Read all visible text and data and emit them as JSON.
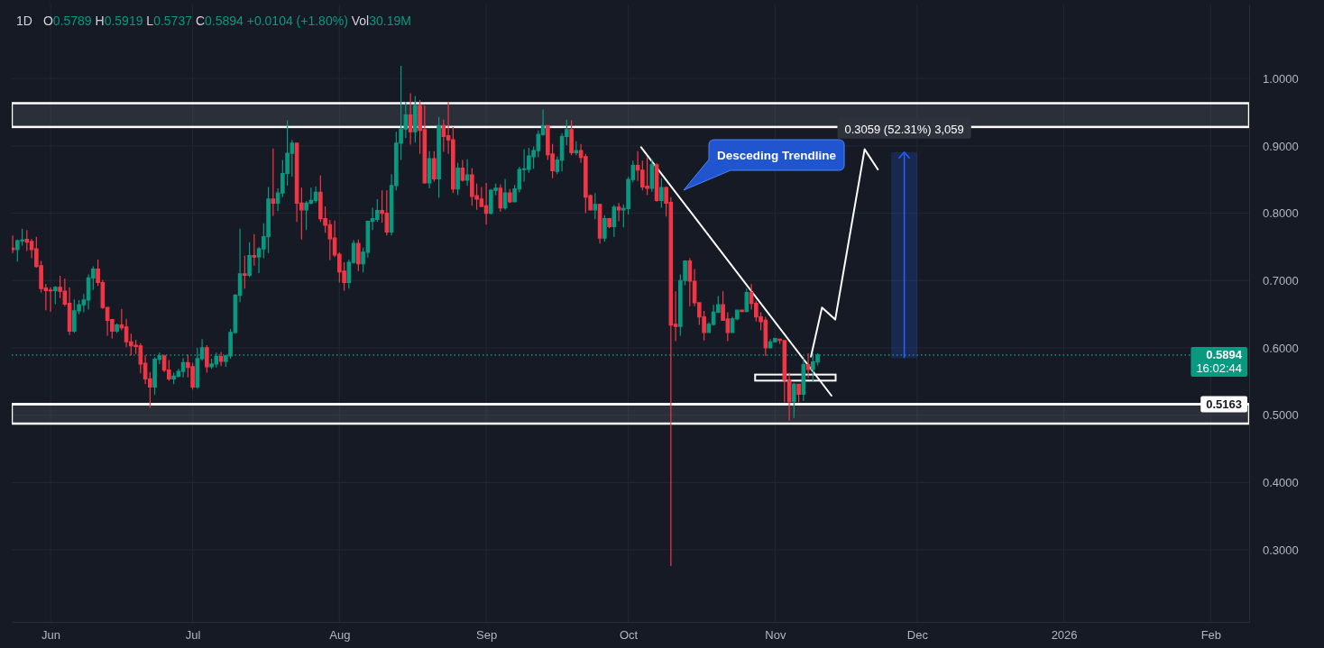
{
  "chart_data": {
    "type": "candlestick",
    "title": "1D",
    "subtitle": "O0.5789 H0.5919 L0.5737 C0.5894 +0.0104 (+1.80%) Vol30.19M",
    "x": [
      "2025-05-24",
      "2025-05-25",
      "2025-05-26",
      "2025-05-27",
      "2025-05-28",
      "2025-05-29",
      "2025-05-30",
      "2025-05-31",
      "2025-06-01",
      "2025-06-02",
      "2025-06-03",
      "2025-06-04",
      "2025-06-05",
      "2025-06-06",
      "2025-06-07",
      "2025-06-08",
      "2025-06-09",
      "2025-06-10",
      "2025-06-11",
      "2025-06-12",
      "2025-06-13",
      "2025-06-14",
      "2025-06-15",
      "2025-06-16",
      "2025-06-17",
      "2025-06-18",
      "2025-06-19",
      "2025-06-20",
      "2025-06-21",
      "2025-06-22",
      "2025-06-23",
      "2025-06-24",
      "2025-06-25",
      "2025-06-26",
      "2025-06-27",
      "2025-06-28",
      "2025-06-29",
      "2025-06-30",
      "2025-07-01",
      "2025-07-02",
      "2025-07-03",
      "2025-07-04",
      "2025-07-05",
      "2025-07-06",
      "2025-07-07",
      "2025-07-08",
      "2025-07-09",
      "2025-07-10",
      "2025-07-11",
      "2025-07-12",
      "2025-07-13",
      "2025-07-14",
      "2025-07-15",
      "2025-07-16",
      "2025-07-17",
      "2025-07-18",
      "2025-07-19",
      "2025-07-20",
      "2025-07-21",
      "2025-07-22",
      "2025-07-23",
      "2025-07-24",
      "2025-07-25",
      "2025-07-26",
      "2025-07-27",
      "2025-07-28",
      "2025-07-29",
      "2025-07-30",
      "2025-07-31",
      "2025-08-01",
      "2025-08-02",
      "2025-08-03",
      "2025-08-04",
      "2025-08-05",
      "2025-08-06",
      "2025-08-07",
      "2025-08-08",
      "2025-08-09",
      "2025-08-10",
      "2025-08-11",
      "2025-08-12",
      "2025-08-13",
      "2025-08-14",
      "2025-08-15",
      "2025-08-16",
      "2025-08-17",
      "2025-08-18",
      "2025-08-19",
      "2025-08-20",
      "2025-08-21",
      "2025-08-22",
      "2025-08-23",
      "2025-08-24",
      "2025-08-25",
      "2025-08-26",
      "2025-08-27",
      "2025-08-28",
      "2025-08-29",
      "2025-08-30",
      "2025-08-31",
      "2025-09-01",
      "2025-09-02",
      "2025-09-03",
      "2025-09-04",
      "2025-09-05",
      "2025-09-06",
      "2025-09-07",
      "2025-09-08",
      "2025-09-09",
      "2025-09-10",
      "2025-09-11",
      "2025-09-12",
      "2025-09-13",
      "2025-09-14",
      "2025-09-15",
      "2025-09-16",
      "2025-09-17",
      "2025-09-18",
      "2025-09-19",
      "2025-09-20",
      "2025-09-21",
      "2025-09-22",
      "2025-09-23",
      "2025-09-24",
      "2025-09-25",
      "2025-09-26",
      "2025-09-27",
      "2025-09-28",
      "2025-09-29",
      "2025-09-30",
      "2025-10-01",
      "2025-10-02",
      "2025-10-03",
      "2025-10-04",
      "2025-10-05",
      "2025-10-06",
      "2025-10-07",
      "2025-10-08",
      "2025-10-09",
      "2025-10-10",
      "2025-10-11",
      "2025-10-12",
      "2025-10-13",
      "2025-10-14",
      "2025-10-15",
      "2025-10-16",
      "2025-10-17",
      "2025-10-18",
      "2025-10-19",
      "2025-10-20",
      "2025-10-21",
      "2025-10-22",
      "2025-10-23",
      "2025-10-24",
      "2025-10-25",
      "2025-10-26",
      "2025-10-27",
      "2025-10-28",
      "2025-10-29",
      "2025-10-30",
      "2025-10-31",
      "2025-11-01",
      "2025-11-02",
      "2025-11-03",
      "2025-11-04",
      "2025-11-05",
      "2025-11-06",
      "2025-11-07",
      "2025-11-08",
      "2025-11-09",
      "2025-11-10"
    ],
    "ohlc": [
      [
        0.748,
        0.767,
        0.741,
        0.746
      ],
      [
        0.746,
        0.761,
        0.728,
        0.759
      ],
      [
        0.759,
        0.777,
        0.752,
        0.76
      ],
      [
        0.761,
        0.775,
        0.744,
        0.757
      ],
      [
        0.758,
        0.762,
        0.733,
        0.746
      ],
      [
        0.747,
        0.765,
        0.719,
        0.721
      ],
      [
        0.722,
        0.729,
        0.682,
        0.688
      ],
      [
        0.689,
        0.695,
        0.656,
        0.685
      ],
      [
        0.686,
        0.69,
        0.654,
        0.685
      ],
      [
        0.685,
        0.692,
        0.665,
        0.69
      ],
      [
        0.69,
        0.707,
        0.674,
        0.684
      ],
      [
        0.684,
        0.703,
        0.662,
        0.665
      ],
      [
        0.666,
        0.69,
        0.619,
        0.625
      ],
      [
        0.625,
        0.672,
        0.622,
        0.655
      ],
      [
        0.655,
        0.671,
        0.65,
        0.664
      ],
      [
        0.664,
        0.68,
        0.653,
        0.671
      ],
      [
        0.671,
        0.709,
        0.657,
        0.704
      ],
      [
        0.704,
        0.721,
        0.686,
        0.717
      ],
      [
        0.717,
        0.731,
        0.692,
        0.697
      ],
      [
        0.697,
        0.701,
        0.658,
        0.66
      ],
      [
        0.66,
        0.661,
        0.618,
        0.641
      ],
      [
        0.642,
        0.643,
        0.614,
        0.625
      ],
      [
        0.625,
        0.636,
        0.622,
        0.634
      ],
      [
        0.634,
        0.658,
        0.626,
        0.63
      ],
      [
        0.631,
        0.643,
        0.601,
        0.609
      ],
      [
        0.609,
        0.621,
        0.589,
        0.603
      ],
      [
        0.604,
        0.612,
        0.591,
        0.602
      ],
      [
        0.603,
        0.607,
        0.562,
        0.576
      ],
      [
        0.577,
        0.589,
        0.546,
        0.554
      ],
      [
        0.554,
        0.564,
        0.511,
        0.542
      ],
      [
        0.542,
        0.586,
        0.53,
        0.583
      ],
      [
        0.583,
        0.593,
        0.576,
        0.588
      ],
      [
        0.588,
        0.59,
        0.564,
        0.567
      ],
      [
        0.567,
        0.582,
        0.551,
        0.554
      ],
      [
        0.554,
        0.563,
        0.546,
        0.558
      ],
      [
        0.558,
        0.569,
        0.556,
        0.565
      ],
      [
        0.565,
        0.585,
        0.556,
        0.578
      ],
      [
        0.578,
        0.59,
        0.556,
        0.571
      ],
      [
        0.572,
        0.578,
        0.538,
        0.542
      ],
      [
        0.542,
        0.6,
        0.539,
        0.584
      ],
      [
        0.584,
        0.613,
        0.581,
        0.6
      ],
      [
        0.6,
        0.604,
        0.563,
        0.572
      ],
      [
        0.572,
        0.584,
        0.569,
        0.576
      ],
      [
        0.576,
        0.593,
        0.571,
        0.587
      ],
      [
        0.587,
        0.594,
        0.573,
        0.58
      ],
      [
        0.58,
        0.59,
        0.572,
        0.588
      ],
      [
        0.588,
        0.628,
        0.584,
        0.623
      ],
      [
        0.623,
        0.68,
        0.621,
        0.678
      ],
      [
        0.678,
        0.777,
        0.668,
        0.71
      ],
      [
        0.71,
        0.737,
        0.688,
        0.708
      ],
      [
        0.708,
        0.757,
        0.705,
        0.737
      ],
      [
        0.737,
        0.769,
        0.722,
        0.735
      ],
      [
        0.735,
        0.75,
        0.711,
        0.747
      ],
      [
        0.747,
        0.785,
        0.733,
        0.765
      ],
      [
        0.765,
        0.839,
        0.741,
        0.821
      ],
      [
        0.821,
        0.896,
        0.796,
        0.815
      ],
      [
        0.815,
        0.837,
        0.803,
        0.83
      ],
      [
        0.83,
        0.879,
        0.824,
        0.859
      ],
      [
        0.859,
        0.938,
        0.841,
        0.889
      ],
      [
        0.889,
        0.909,
        0.854,
        0.904
      ],
      [
        0.904,
        0.905,
        0.787,
        0.815
      ],
      [
        0.815,
        0.838,
        0.761,
        0.805
      ],
      [
        0.805,
        0.818,
        0.775,
        0.815
      ],
      [
        0.815,
        0.838,
        0.813,
        0.819
      ],
      [
        0.819,
        0.84,
        0.815,
        0.831
      ],
      [
        0.831,
        0.856,
        0.787,
        0.792
      ],
      [
        0.792,
        0.81,
        0.771,
        0.782
      ],
      [
        0.783,
        0.79,
        0.73,
        0.762
      ],
      [
        0.763,
        0.789,
        0.735,
        0.738
      ],
      [
        0.739,
        0.742,
        0.697,
        0.713
      ],
      [
        0.714,
        0.727,
        0.685,
        0.697
      ],
      [
        0.697,
        0.731,
        0.688,
        0.727
      ],
      [
        0.727,
        0.76,
        0.725,
        0.755
      ],
      [
        0.755,
        0.761,
        0.714,
        0.725
      ],
      [
        0.725,
        0.749,
        0.712,
        0.742
      ],
      [
        0.742,
        0.789,
        0.734,
        0.788
      ],
      [
        0.788,
        0.808,
        0.775,
        0.792
      ],
      [
        0.791,
        0.821,
        0.787,
        0.804
      ],
      [
        0.804,
        0.834,
        0.786,
        0.8
      ],
      [
        0.8,
        0.834,
        0.767,
        0.772
      ],
      [
        0.772,
        0.858,
        0.767,
        0.841
      ],
      [
        0.841,
        0.921,
        0.834,
        0.904
      ],
      [
        0.904,
        1.019,
        0.879,
        0.925
      ],
      [
        0.925,
        0.965,
        0.912,
        0.946
      ],
      [
        0.946,
        0.978,
        0.902,
        0.921
      ],
      [
        0.921,
        0.974,
        0.905,
        0.96
      ],
      [
        0.96,
        0.968,
        0.888,
        0.923
      ],
      [
        0.924,
        0.96,
        0.844,
        0.845
      ],
      [
        0.845,
        0.892,
        0.837,
        0.881
      ],
      [
        0.881,
        0.892,
        0.847,
        0.851
      ],
      [
        0.851,
        0.943,
        0.823,
        0.93
      ],
      [
        0.93,
        0.939,
        0.891,
        0.914
      ],
      [
        0.915,
        0.965,
        0.888,
        0.909
      ],
      [
        0.909,
        0.928,
        0.83,
        0.836
      ],
      [
        0.836,
        0.875,
        0.827,
        0.867
      ],
      [
        0.867,
        0.879,
        0.847,
        0.849
      ],
      [
        0.849,
        0.88,
        0.841,
        0.857
      ],
      [
        0.857,
        0.867,
        0.811,
        0.825
      ],
      [
        0.826,
        0.844,
        0.805,
        0.821
      ],
      [
        0.821,
        0.839,
        0.809,
        0.81
      ],
      [
        0.811,
        0.845,
        0.783,
        0.8
      ],
      [
        0.8,
        0.836,
        0.798,
        0.834
      ],
      [
        0.834,
        0.844,
        0.827,
        0.837
      ],
      [
        0.837,
        0.843,
        0.802,
        0.808
      ],
      [
        0.808,
        0.851,
        0.805,
        0.83
      ],
      [
        0.83,
        0.836,
        0.815,
        0.817
      ],
      [
        0.817,
        0.842,
        0.816,
        0.836
      ],
      [
        0.836,
        0.869,
        0.831,
        0.865
      ],
      [
        0.865,
        0.895,
        0.847,
        0.866
      ],
      [
        0.865,
        0.897,
        0.86,
        0.885
      ],
      [
        0.884,
        0.899,
        0.866,
        0.893
      ],
      [
        0.893,
        0.923,
        0.883,
        0.917
      ],
      [
        0.917,
        0.954,
        0.915,
        0.93
      ],
      [
        0.93,
        0.931,
        0.879,
        0.887
      ],
      [
        0.888,
        0.903,
        0.852,
        0.863
      ],
      [
        0.862,
        0.884,
        0.858,
        0.879
      ],
      [
        0.879,
        0.919,
        0.862,
        0.914
      ],
      [
        0.914,
        0.939,
        0.901,
        0.924
      ],
      [
        0.924,
        0.938,
        0.886,
        0.89
      ],
      [
        0.89,
        0.907,
        0.886,
        0.893
      ],
      [
        0.893,
        0.903,
        0.875,
        0.883
      ],
      [
        0.884,
        0.888,
        0.8,
        0.824
      ],
      [
        0.826,
        0.828,
        0.804,
        0.805
      ],
      [
        0.805,
        0.83,
        0.791,
        0.813
      ],
      [
        0.813,
        0.814,
        0.755,
        0.763
      ],
      [
        0.763,
        0.797,
        0.758,
        0.792
      ],
      [
        0.792,
        0.793,
        0.778,
        0.78
      ],
      [
        0.78,
        0.812,
        0.765,
        0.809
      ],
      [
        0.809,
        0.815,
        0.788,
        0.805
      ],
      [
        0.805,
        0.813,
        0.779,
        0.807
      ],
      [
        0.807,
        0.854,
        0.798,
        0.85
      ],
      [
        0.85,
        0.878,
        0.846,
        0.871
      ],
      [
        0.871,
        0.892,
        0.848,
        0.864
      ],
      [
        0.864,
        0.878,
        0.834,
        0.839
      ],
      [
        0.84,
        0.883,
        0.827,
        0.837
      ],
      [
        0.837,
        0.88,
        0.832,
        0.872
      ],
      [
        0.872,
        0.874,
        0.817,
        0.819
      ],
      [
        0.819,
        0.852,
        0.808,
        0.838
      ],
      [
        0.838,
        0.84,
        0.795,
        0.815
      ],
      [
        0.816,
        0.824,
        0.276,
        0.634
      ],
      [
        0.635,
        0.684,
        0.61,
        0.632
      ],
      [
        0.632,
        0.709,
        0.618,
        0.7
      ],
      [
        0.7,
        0.73,
        0.693,
        0.729
      ],
      [
        0.729,
        0.733,
        0.662,
        0.699
      ],
      [
        0.699,
        0.717,
        0.662,
        0.667
      ],
      [
        0.667,
        0.668,
        0.634,
        0.646
      ],
      [
        0.646,
        0.655,
        0.611,
        0.623
      ],
      [
        0.623,
        0.638,
        0.622,
        0.635
      ],
      [
        0.635,
        0.664,
        0.633,
        0.653
      ],
      [
        0.653,
        0.677,
        0.652,
        0.664
      ],
      [
        0.664,
        0.684,
        0.64,
        0.641
      ],
      [
        0.643,
        0.653,
        0.61,
        0.623
      ],
      [
        0.623,
        0.646,
        0.622,
        0.643
      ],
      [
        0.643,
        0.657,
        0.641,
        0.656
      ],
      [
        0.656,
        0.657,
        0.653,
        0.654
      ],
      [
        0.654,
        0.688,
        0.653,
        0.682
      ],
      [
        0.682,
        0.695,
        0.657,
        0.666
      ],
      [
        0.666,
        0.67,
        0.639,
        0.646
      ],
      [
        0.646,
        0.653,
        0.626,
        0.639
      ],
      [
        0.641,
        0.646,
        0.588,
        0.6
      ],
      [
        0.6,
        0.613,
        0.599,
        0.609
      ],
      [
        0.609,
        0.615,
        0.608,
        0.614
      ],
      [
        0.613,
        0.613,
        0.606,
        0.611
      ],
      [
        0.611,
        0.611,
        0.519,
        0.552
      ],
      [
        0.552,
        0.563,
        0.492,
        0.52
      ],
      [
        0.52,
        0.548,
        0.496,
        0.546
      ],
      [
        0.546,
        0.546,
        0.519,
        0.531
      ],
      [
        0.531,
        0.584,
        0.521,
        0.575
      ],
      [
        0.575,
        0.592,
        0.555,
        0.568
      ],
      [
        0.568,
        0.592,
        0.55,
        0.579
      ],
      [
        0.5789,
        0.5919,
        0.5737,
        0.5894
      ]
    ],
    "series": [
      {
        "type": "line",
        "color": "#ffffff",
        "x": [
          "2025-10-03T17:00",
          "2025-11-12T22:00"
        ],
        "values": [
          0.898,
          0.529
        ]
      },
      {
        "type": "line",
        "color": "#ffffff",
        "x": [
          "2025-11-08T14:00",
          "2025-11-10T22:00",
          "2025-11-13T17:00",
          "2025-11-19T22:00",
          "2025-11-22T17:00"
        ],
        "values": [
          0.587,
          0.66,
          0.642,
          0.895,
          0.865
        ]
      },
      {
        "type": "bar",
        "color": "#2962ff",
        "x": [
          "2025-11-28T07:00"
        ],
        "base": [
          0.5848
        ],
        "values": [
          0.3059
        ],
        "value_labels": [
          "0.3059 (52.31%) 3,059"
        ]
      }
    ],
    "xlim": [
      "2025-05-23T19:00",
      "2026-02-09T03:00"
    ],
    "xticks": [
      {
        "value": "2025-06-01",
        "label": "Jun"
      },
      {
        "value": "2025-07-01",
        "label": "Jul"
      },
      {
        "value": "2025-08-01",
        "label": "Aug"
      },
      {
        "value": "2025-09-01",
        "label": "Sep"
      },
      {
        "value": "2025-10-01",
        "label": "Oct"
      },
      {
        "value": "2025-11-01",
        "label": "Nov"
      },
      {
        "value": "2025-12-01",
        "label": "Dec"
      },
      {
        "value": "2026-01-01",
        "label": "2026"
      },
      {
        "value": "2026-02-01",
        "label": "Feb"
      }
    ],
    "ylim": [
      0.193,
      1.11
    ],
    "yticks": [
      {
        "value": 0.3,
        "label": "0.3000"
      },
      {
        "value": 0.4,
        "label": "0.4000"
      },
      {
        "value": 0.5,
        "label": "0.5000"
      },
      {
        "value": 0.6,
        "label": "0.6000"
      },
      {
        "value": 0.7,
        "label": "0.7000"
      },
      {
        "value": 0.8,
        "label": "0.8000"
      },
      {
        "value": 0.9,
        "label": "0.9000"
      },
      {
        "value": 1,
        "label": "1.0000"
      }
    ],
    "grid": true,
    "bands": [
      {
        "axis": "y",
        "from": 0.9281,
        "to": 0.9634,
        "color": "#ffffff"
      },
      {
        "axis": "y",
        "from": 0.4875,
        "to": 0.5163,
        "color": "#ffffff"
      }
    ],
    "ref_lines": [
      {
        "axis": "y",
        "value": 0.5163,
        "label": "0.5163",
        "color": "#ffffff",
        "line_style": "solid"
      },
      {
        "axis": "y",
        "value": 0.5894,
        "label": "0.5894\n16:02:44",
        "color": "#089981",
        "line_style": "dotted"
      }
    ],
    "annotations": [
      "Desceding Trendline"
    ]
  }
}
